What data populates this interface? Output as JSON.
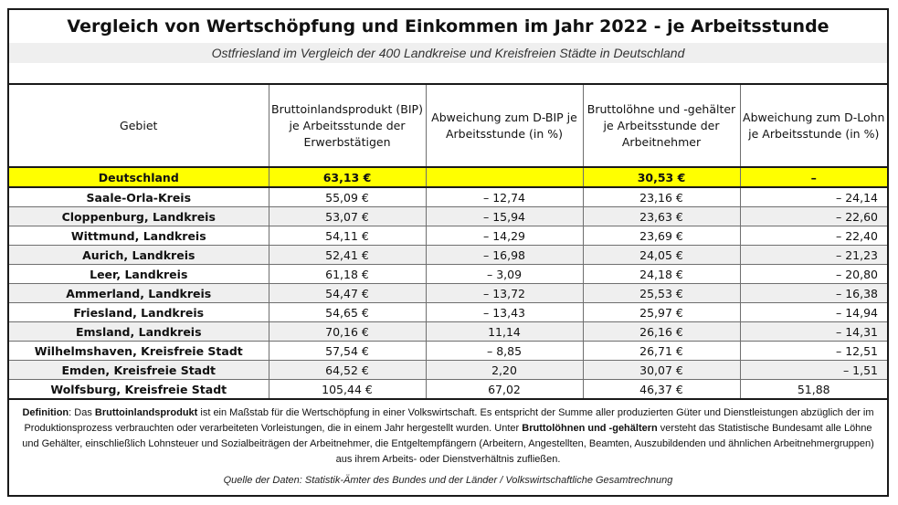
{
  "title": "Vergleich von Wertschöpfung und Einkommen im Jahr 2022 - je Arbeitsstunde",
  "subtitle": "Ostfriesland im Vergleich der 400 Landkreise und Kreisfreien Städte in Deutschland",
  "table": {
    "headers": [
      "Gebiet",
      "Bruttoinlandsprodukt (BIP) je Arbeitsstunde der Erwerbstätigen",
      "Abweichung zum D-BIP je Arbeitsstunde (in %)",
      "Bruttolöhne und -gehälter je Arbeitsstunde der Arbeitnehmer",
      "Abweichung zum D-Lohn je Arbeitsstunde (in %)"
    ],
    "rows": [
      {
        "gebiet": "Deutschland",
        "bip": "63,13 €",
        "abw_bip": "",
        "lohn": "30,53 €",
        "abw_lohn": "–"
      },
      {
        "gebiet": "Saale-Orla-Kreis",
        "bip": "55,09 €",
        "abw_bip": "–  12,74",
        "lohn": "23,16 €",
        "abw_lohn": "– 24,14"
      },
      {
        "gebiet": "Cloppenburg, Landkreis",
        "bip": "53,07 €",
        "abw_bip": "–  15,94",
        "lohn": "23,63 €",
        "abw_lohn": "– 22,60"
      },
      {
        "gebiet": "Wittmund, Landkreis",
        "bip": "54,11 €",
        "abw_bip": "–  14,29",
        "lohn": "23,69 €",
        "abw_lohn": "– 22,40"
      },
      {
        "gebiet": "Aurich, Landkreis",
        "bip": "52,41 €",
        "abw_bip": "–  16,98",
        "lohn": "24,05 €",
        "abw_lohn": "– 21,23"
      },
      {
        "gebiet": "Leer, Landkreis",
        "bip": "61,18 €",
        "abw_bip": "–   3,09",
        "lohn": "24,18 €",
        "abw_lohn": "– 20,80"
      },
      {
        "gebiet": "Ammerland, Landkreis",
        "bip": "54,47 €",
        "abw_bip": "–  13,72",
        "lohn": "25,53 €",
        "abw_lohn": "– 16,38"
      },
      {
        "gebiet": "Friesland, Landkreis",
        "bip": "54,65 €",
        "abw_bip": "–  13,43",
        "lohn": "25,97 €",
        "abw_lohn": "– 14,94"
      },
      {
        "gebiet": "Emsland, Landkreis",
        "bip": "70,16 €",
        "abw_bip": "11,14",
        "lohn": "26,16 €",
        "abw_lohn": "– 14,31"
      },
      {
        "gebiet": "Wilhelmshaven, Kreisfreie Stadt",
        "bip": "57,54 €",
        "abw_bip": "–   8,85",
        "lohn": "26,71 €",
        "abw_lohn": "– 12,51"
      },
      {
        "gebiet": "Emden, Kreisfreie Stadt",
        "bip": "64,52 €",
        "abw_bip": "2,20",
        "lohn": "30,07 €",
        "abw_lohn": "– 1,51"
      },
      {
        "gebiet": "Wolfsburg, Kreisfreie Stadt",
        "bip": "105,44 €",
        "abw_bip": "67,02",
        "lohn": "46,37 €",
        "abw_lohn": "51,88"
      }
    ]
  },
  "definition": {
    "label": "Definition",
    "part1": ": Das ",
    "term1": "Bruttoinlandsprodukt",
    "part2": " ist ein Maßstab für die Wertschöpfung in einer Volkswirtschaft. Es  entspricht der Summe aller produzierten Güter und Dienstleistungen abzüglich der im Produktionsprozess verbrauchten oder verarbeiteten Vorleistungen, die in einem Jahr hergestellt wurden. Unter ",
    "term2": "Bruttolöhnen und -gehältern",
    "part3": " versteht das Statistische Bundesamt alle Löhne und Gehälter, einschließlich Lohnsteuer und Sozialbeiträgen der Arbeitnehmer, die Entgeltempfängern (Arbeitern, Angestellten, Beamten, Auszubildenden und ähnlichen Arbeitnehmergruppen) aus ihrem Arbeits- oder Dienstverhältnis zufließen."
  },
  "source": "Quelle der Daten: Statistik-Ämter des Bundes und der Länder / Volkswirtschaftliche Gesamtrechnung",
  "colors": {
    "highlight": "#ffff00",
    "alt_row": "#efefef",
    "border": "#1a1a1a"
  }
}
